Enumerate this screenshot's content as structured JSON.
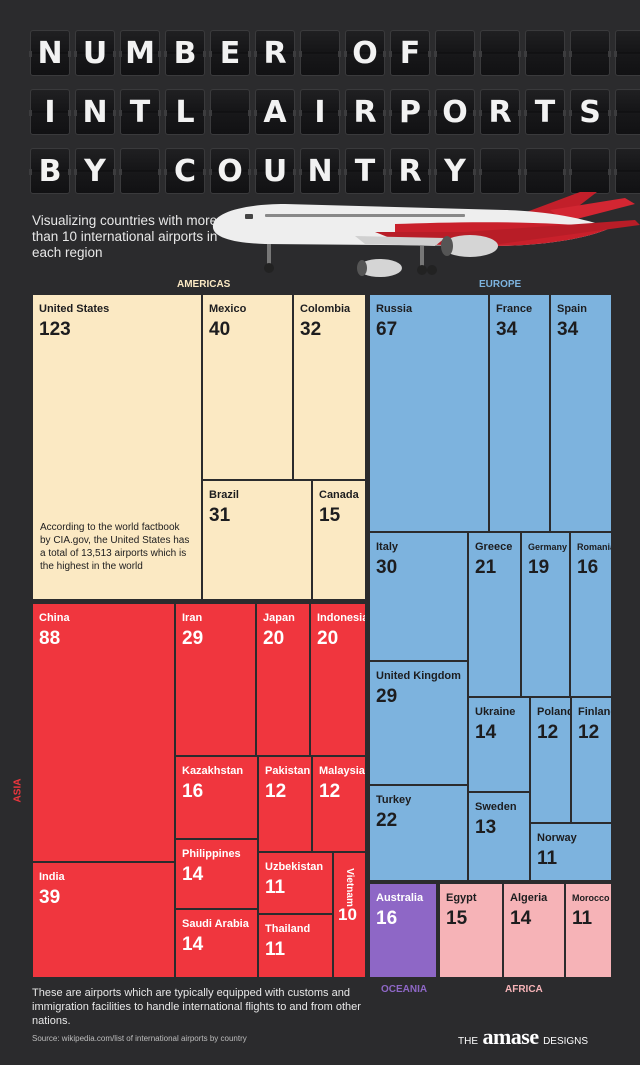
{
  "title_rows": [
    [
      "N",
      "U",
      "M",
      "B",
      "E",
      "R",
      "",
      "O",
      "F",
      "",
      "",
      "",
      "",
      ""
    ],
    [
      "I",
      "N",
      "T",
      "L",
      "",
      "A",
      "I",
      "R",
      "P",
      "O",
      "R",
      "T",
      "S",
      ""
    ],
    [
      "B",
      "Y",
      "",
      "C",
      "O",
      "U",
      "N",
      "T",
      "R",
      "Y",
      "",
      "",
      "",
      ""
    ]
  ],
  "subtitle": "Visualizing countries with more than 10 international airports in each region",
  "regions": {
    "americas": "AMERICAS",
    "europe": "EUROPE",
    "asia": "ASIA",
    "oceania": "OCEANIA",
    "africa": "AFRICA"
  },
  "colors": {
    "background": "#2b2b2d",
    "americas": "#fbe9c3",
    "europe": "#7db3de",
    "asia": "#f0363e",
    "oceania": "#8e67c6",
    "africa": "#f6b3b7",
    "europe_label": "#7db3de",
    "americas_label": "#fbe9c3"
  },
  "us_note": "According to the world factbook by CIA.gov, the United States has a total of 13,513 airports which is the highest in the world",
  "footnote": "These are airports which are typically equipped with customs and immigration facilities to handle international flights to and from other nations.",
  "source": "Source: wikipedia.com/list of international airports by country",
  "brand": {
    "prefix": "THE",
    "name": "amase",
    "suffix": "DESIGNS"
  },
  "chart_data": {
    "type": "treemap",
    "title": "NUMBER OF INTL AIRPORTS BY COUNTRY",
    "subtitle": "Visualizing countries with more than 10 international airports in each region",
    "groups": [
      {
        "region": "AMERICAS",
        "items": [
          {
            "name": "United States",
            "value": 123
          },
          {
            "name": "Mexico",
            "value": 40
          },
          {
            "name": "Colombia",
            "value": 32
          },
          {
            "name": "Brazil",
            "value": 31
          },
          {
            "name": "Canada",
            "value": 15
          }
        ]
      },
      {
        "region": "EUROPE",
        "items": [
          {
            "name": "Russia",
            "value": 67
          },
          {
            "name": "France",
            "value": 34
          },
          {
            "name": "Spain",
            "value": 34
          },
          {
            "name": "Italy",
            "value": 30
          },
          {
            "name": "Greece",
            "value": 21
          },
          {
            "name": "Germany",
            "value": 19
          },
          {
            "name": "Romania",
            "value": 16
          },
          {
            "name": "United Kingdom",
            "value": 29
          },
          {
            "name": "Ukraine",
            "value": 14
          },
          {
            "name": "Poland",
            "value": 12
          },
          {
            "name": "Finland",
            "value": 12
          },
          {
            "name": "Turkey",
            "value": 22
          },
          {
            "name": "Sweden",
            "value": 13
          },
          {
            "name": "Norway",
            "value": 11
          }
        ]
      },
      {
        "region": "ASIA",
        "items": [
          {
            "name": "China",
            "value": 88
          },
          {
            "name": "Iran",
            "value": 29
          },
          {
            "name": "Japan",
            "value": 20
          },
          {
            "name": "Indonesia",
            "value": 20
          },
          {
            "name": "Kazakhstan",
            "value": 16
          },
          {
            "name": "Pakistan",
            "value": 12
          },
          {
            "name": "Malaysia",
            "value": 12
          },
          {
            "name": "Philippines",
            "value": 14
          },
          {
            "name": "Uzbekistan",
            "value": 11
          },
          {
            "name": "Vietnam",
            "value": 10
          },
          {
            "name": "India",
            "value": 39
          },
          {
            "name": "Saudi Arabia",
            "value": 14
          },
          {
            "name": "Thailand",
            "value": 11
          }
        ]
      },
      {
        "region": "OCEANIA",
        "items": [
          {
            "name": "Australia",
            "value": 16
          }
        ]
      },
      {
        "region": "AFRICA",
        "items": [
          {
            "name": "Egypt",
            "value": 15
          },
          {
            "name": "Algeria",
            "value": 14
          },
          {
            "name": "Morocco",
            "value": 11
          }
        ]
      }
    ]
  }
}
